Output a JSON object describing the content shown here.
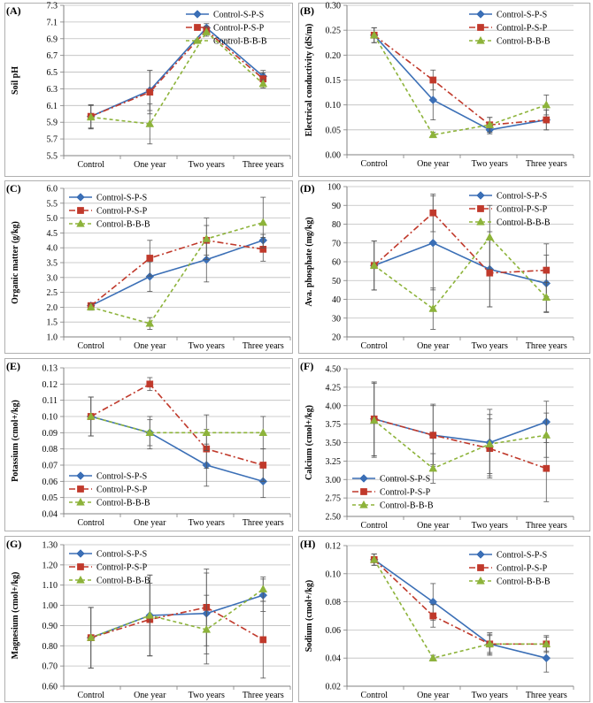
{
  "categories": [
    "Control",
    "One year",
    "Two years",
    "Three years"
  ],
  "series_styles": {
    "Control-S-P-S": {
      "color": "#3b6fb6",
      "marker": "diamond",
      "dash": "none"
    },
    "Control-P-S-P": {
      "color": "#c0392b",
      "marker": "square",
      "dash": "7,3,2,3"
    },
    "Control-B-B-B": {
      "color": "#8db33a",
      "marker": "triangle",
      "dash": "4,3"
    }
  },
  "chart_data": [
    {
      "type": "line",
      "panel": "(A)",
      "ylabel": "Soil pH",
      "ylim": [
        5.5,
        7.3
      ],
      "yticks": [
        5.5,
        5.7,
        5.9,
        6.1,
        6.3,
        6.5,
        6.7,
        6.9,
        7.1,
        7.3
      ],
      "tick_decimals": 1,
      "legend": "top-right",
      "categories": [
        "Control",
        "One year",
        "Two years",
        "Three years"
      ],
      "series": [
        {
          "name": "Control-S-P-S",
          "values": [
            5.97,
            6.28,
            7.03,
            6.45
          ],
          "err": [
            0.14,
            0.24,
            0.05,
            0.07
          ]
        },
        {
          "name": "Control-P-S-P",
          "values": [
            5.97,
            6.26,
            7.0,
            6.42
          ],
          "err": [
            0.14,
            0.26,
            0.05,
            0.07
          ]
        },
        {
          "name": "Control-B-B-B",
          "values": [
            5.96,
            5.88,
            6.98,
            6.36
          ],
          "err": [
            0.14,
            0.24,
            0.05,
            0.05
          ]
        }
      ]
    },
    {
      "type": "line",
      "panel": "(B)",
      "ylabel": "Electrical conductivity (dS/m)",
      "ylim": [
        0,
        0.3
      ],
      "yticks": [
        0,
        0.05,
        0.1,
        0.15,
        0.2,
        0.25,
        0.3
      ],
      "tick_decimals": 2,
      "legend": "top-right",
      "categories": [
        "Control",
        "One year",
        "Two years",
        "Three years"
      ],
      "series": [
        {
          "name": "Control-S-P-S",
          "values": [
            0.24,
            0.11,
            0.05,
            0.07
          ],
          "err": [
            0.015,
            0.04,
            0.008,
            0.02
          ]
        },
        {
          "name": "Control-P-S-P",
          "values": [
            0.24,
            0.15,
            0.06,
            0.07
          ],
          "err": [
            0.015,
            0.02,
            0.015,
            0.02
          ]
        },
        {
          "name": "Control-B-B-B",
          "values": [
            0.24,
            0.04,
            0.06,
            0.1
          ],
          "err": [
            0.015,
            0.005,
            0.015,
            0.02
          ]
        }
      ]
    },
    {
      "type": "line",
      "panel": "(C)",
      "ylabel": "Organic matter (g/kg)",
      "ylim": [
        1.0,
        6.0
      ],
      "yticks": [
        1.0,
        1.5,
        2.0,
        2.5,
        3.0,
        3.5,
        4.0,
        4.5,
        5.0,
        5.5,
        6.0
      ],
      "tick_decimals": 1,
      "legend": "top-left",
      "categories": [
        "Control",
        "One year",
        "Two years",
        "Three years"
      ],
      "series": [
        {
          "name": "Control-S-P-S",
          "values": [
            2.05,
            3.03,
            3.6,
            4.25
          ],
          "err": [
            0.1,
            0.5,
            0.75,
            0.2
          ]
        },
        {
          "name": "Control-P-S-P",
          "values": [
            2.05,
            3.65,
            4.25,
            3.95
          ],
          "err": [
            0.1,
            0.6,
            0.5,
            0.4
          ]
        },
        {
          "name": "Control-B-B-B",
          "values": [
            2.0,
            1.45,
            4.3,
            4.85
          ],
          "err": [
            0.1,
            0.2,
            0.7,
            0.85
          ]
        }
      ]
    },
    {
      "type": "line",
      "panel": "(D)",
      "ylabel": "Ava. phosphate (mg/kg)",
      "ylim": [
        20,
        100
      ],
      "yticks": [
        20,
        30,
        40,
        50,
        60,
        70,
        80,
        90,
        100
      ],
      "tick_decimals": 0,
      "legend": "top-right",
      "categories": [
        "Control",
        "One year",
        "Two years",
        "Three years"
      ],
      "series": [
        {
          "name": "Control-S-P-S",
          "values": [
            58,
            70,
            56,
            48.5
          ],
          "err": [
            13,
            25,
            20,
            15
          ]
        },
        {
          "name": "Control-P-S-P",
          "values": [
            58,
            86,
            54,
            55.5
          ],
          "err": [
            13,
            10,
            18,
            14
          ]
        },
        {
          "name": "Control-B-B-B",
          "values": [
            58,
            35,
            73,
            41
          ],
          "err": [
            13,
            11,
            17,
            8
          ]
        }
      ]
    },
    {
      "type": "line",
      "panel": "(E)",
      "ylabel": "Potassium (cmol+/kg)",
      "ylim": [
        0.04,
        0.13
      ],
      "yticks": [
        0.04,
        0.05,
        0.06,
        0.07,
        0.08,
        0.09,
        0.1,
        0.11,
        0.12,
        0.13
      ],
      "tick_decimals": 2,
      "legend": "bottom-left",
      "categories": [
        "Control",
        "One year",
        "Two years",
        "Three years"
      ],
      "series": [
        {
          "name": "Control-S-P-S",
          "values": [
            0.1,
            0.09,
            0.07,
            0.06
          ],
          "err": [
            0.012,
            0.01,
            0.013,
            0.01
          ]
        },
        {
          "name": "Control-P-S-P",
          "values": [
            0.1,
            0.12,
            0.08,
            0.07
          ],
          "err": [
            0.012,
            0.004,
            0.012,
            0.01
          ]
        },
        {
          "name": "Control-B-B-B",
          "values": [
            0.1,
            0.09,
            0.09,
            0.09
          ],
          "err": [
            0.012,
            0.008,
            0.011,
            0.01
          ]
        }
      ]
    },
    {
      "type": "line",
      "panel": "(F)",
      "ylabel": "Calcium (cmol+/kg)",
      "ylim": [
        2.5,
        4.5
      ],
      "yticks": [
        2.5,
        2.75,
        3.0,
        3.25,
        3.5,
        3.75,
        4.0,
        4.25,
        4.5
      ],
      "tick_decimals": 2,
      "legend": "bottom-left",
      "categories": [
        "Control",
        "One year",
        "Two years",
        "Three years"
      ],
      "series": [
        {
          "name": "Control-S-P-S",
          "values": [
            3.82,
            3.6,
            3.5,
            3.78
          ],
          "err": [
            0.5,
            0.4,
            0.45,
            0.28
          ]
        },
        {
          "name": "Control-P-S-P",
          "values": [
            3.82,
            3.6,
            3.42,
            3.15
          ],
          "err": [
            0.5,
            0.42,
            0.4,
            0.45
          ]
        },
        {
          "name": "Control-B-B-B",
          "values": [
            3.8,
            3.15,
            3.48,
            3.6
          ],
          "err": [
            0.5,
            0.2,
            0.4,
            0.3
          ]
        }
      ]
    },
    {
      "type": "line",
      "panel": "(G)",
      "ylabel": "Magnesium (cmol+/kg)",
      "ylim": [
        0.6,
        1.3
      ],
      "yticks": [
        0.6,
        0.7,
        0.8,
        0.9,
        1.0,
        1.1,
        1.2,
        1.3
      ],
      "tick_decimals": 2,
      "legend": "top-left",
      "categories": [
        "Control",
        "One year",
        "Two years",
        "Three years"
      ],
      "series": [
        {
          "name": "Control-S-P-S",
          "values": [
            0.84,
            0.95,
            0.96,
            1.05
          ],
          "err": [
            0.15,
            0.2,
            0.2,
            0.08
          ]
        },
        {
          "name": "Control-P-S-P",
          "values": [
            0.84,
            0.93,
            0.99,
            0.83
          ],
          "err": [
            0.15,
            0.18,
            0.19,
            0.19
          ]
        },
        {
          "name": "Control-B-B-B",
          "values": [
            0.84,
            0.95,
            0.88,
            1.08
          ],
          "err": [
            0.15,
            0.2,
            0.17,
            0.06
          ]
        }
      ]
    },
    {
      "type": "line",
      "panel": "(H)",
      "ylabel": "Sodium (cmol+/kg)",
      "ylim": [
        0.02,
        0.12
      ],
      "yticks": [
        0.02,
        0.04,
        0.06,
        0.08,
        0.1,
        0.12
      ],
      "tick_decimals": 2,
      "legend": "top-right",
      "categories": [
        "Control",
        "One year",
        "Two years",
        "Three years"
      ],
      "series": [
        {
          "name": "Control-S-P-S",
          "values": [
            0.11,
            0.08,
            0.05,
            0.04
          ],
          "err": [
            0.004,
            0.013,
            0.008,
            0.01
          ]
        },
        {
          "name": "Control-P-S-P",
          "values": [
            0.11,
            0.07,
            0.05,
            0.05
          ],
          "err": [
            0.004,
            0.008,
            0.007,
            0.006
          ]
        },
        {
          "name": "Control-B-B-B",
          "values": [
            0.11,
            0.04,
            0.05,
            0.05
          ],
          "err": [
            0.004,
            0.002,
            0.006,
            0.005
          ]
        }
      ]
    }
  ]
}
